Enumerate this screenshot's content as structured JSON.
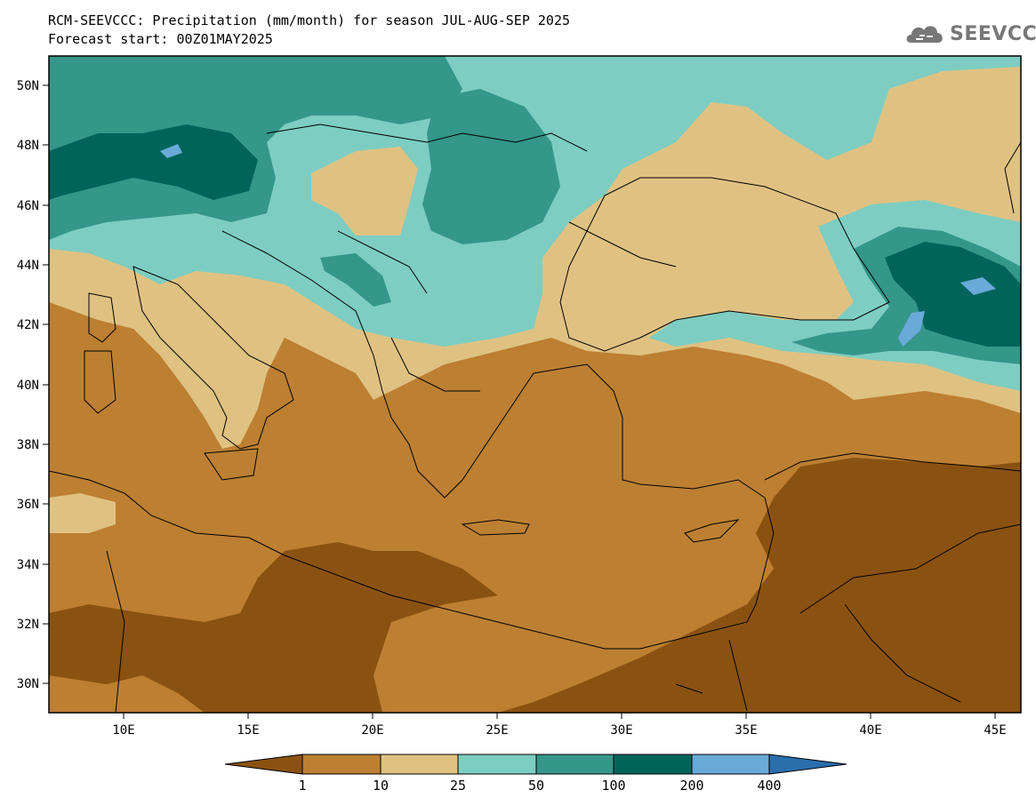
{
  "title": {
    "line1": "RCM-SEEVCCC: Precipitation (mm/month) for season JUL-AUG-SEP 2025",
    "line2": "Forecast start: 00Z01MAY2025"
  },
  "logo": {
    "text": "SEEVCCC",
    "icon": "cloud-icon"
  },
  "map": {
    "lon_range": [
      7,
      46
    ],
    "lat_range": [
      29,
      51
    ],
    "x_ticks": [
      "10E",
      "15E",
      "20E",
      "25E",
      "30E",
      "35E",
      "40E",
      "45E"
    ],
    "y_ticks": [
      "50N",
      "48N",
      "46N",
      "44N",
      "42N",
      "40N",
      "38N",
      "36N",
      "34N",
      "32N",
      "30N"
    ]
  },
  "colorbar": {
    "labels": [
      "1",
      "10",
      "25",
      "50",
      "100",
      "200",
      "400"
    ],
    "colors": [
      "#8a5210",
      "#bd7f32",
      "#dfc282",
      "#7ecdc2",
      "#35968a",
      "#00645a",
      "#6aaad8",
      "#2b6eac"
    ]
  }
}
